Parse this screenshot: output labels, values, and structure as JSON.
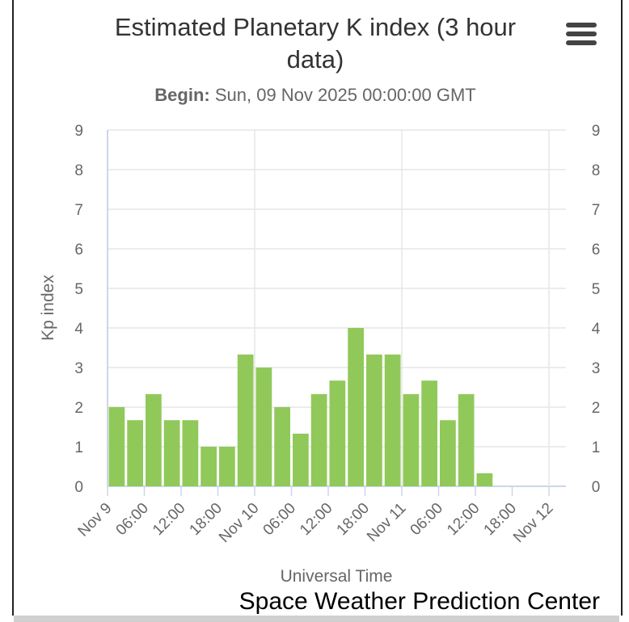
{
  "chart_data": {
    "type": "bar",
    "title": "Estimated Planetary K index (3 hour data)",
    "title_lines": [
      "Estimated Planetary K index (3 hour",
      "data)"
    ],
    "subtitle_label": "Begin:",
    "subtitle_value": "Sun, 09 Nov 2025 00:00:00 GMT",
    "xlabel": "Universal Time",
    "ylabel": "Kp index",
    "ylim": [
      0,
      9
    ],
    "yticks": [
      "0",
      "1",
      "2",
      "3",
      "4",
      "5",
      "6",
      "7",
      "8",
      "9"
    ],
    "xticks": [
      "Nov 9",
      "06:00",
      "12:00",
      "18:00",
      "Nov 10",
      "06:00",
      "12:00",
      "18:00",
      "Nov 11",
      "06:00",
      "12:00",
      "18:00",
      "Nov 12"
    ],
    "x_range_hours": [
      0,
      72
    ],
    "bar_interval_hours": 3,
    "values": [
      2.0,
      1.67,
      2.33,
      1.67,
      1.67,
      1.0,
      1.0,
      3.33,
      3.0,
      2.0,
      1.33,
      2.33,
      2.67,
      4.0,
      3.33,
      3.33,
      2.33,
      2.67,
      1.67,
      2.33,
      0.33
    ],
    "bar_color": "#90c95a",
    "grid": true,
    "credit": "Space Weather Prediction Center"
  },
  "menu": {
    "icon": "hamburger-menu-icon"
  }
}
